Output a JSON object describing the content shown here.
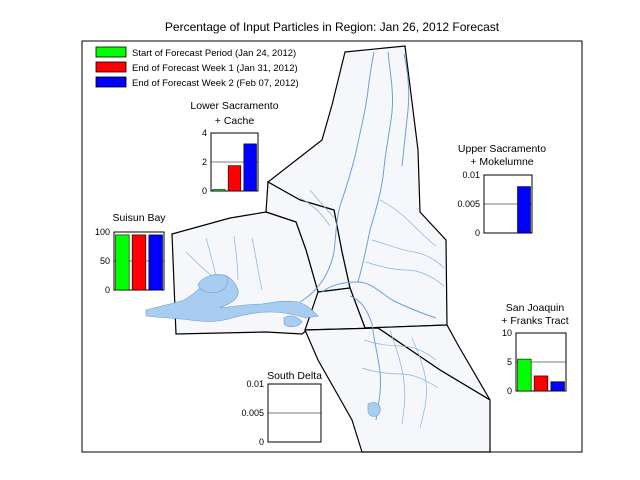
{
  "title": "Percentage of Input Particles in Region: Jan 26, 2012 Forecast",
  "colors": {
    "green": "#00ff00",
    "red": "#ff0000",
    "blue": "#0000ff",
    "water": "#a9cdf0"
  },
  "legend": [
    {
      "label": "Start of Forecast Period (Jan 24, 2012)",
      "color": "#00ff00"
    },
    {
      "label": "End of Forecast Week 1 (Jan 31, 2012)",
      "color": "#ff0000"
    },
    {
      "label": "End of Forecast Week 2 (Feb 07, 2012)",
      "color": "#0000ff"
    }
  ],
  "chart_data": [
    {
      "type": "bar",
      "title": [
        "Lower Sacramento",
        "+ Cache"
      ],
      "series": [
        "Start of Forecast Period (Jan 24, 2012)",
        "End of Forecast Week 1 (Jan 31, 2012)",
        "End of Forecast Week 2 (Feb 07, 2012)"
      ],
      "values": [
        0.1,
        1.75,
        3.25
      ],
      "ylim": [
        0,
        4
      ],
      "yticks": [
        0,
        2,
        4
      ],
      "ytick_labels": [
        "0",
        "2",
        "4"
      ],
      "grid_lines": [
        2
      ]
    },
    {
      "type": "bar",
      "title": [
        "Upper Sacramento",
        "+ Mokelumne"
      ],
      "series": [
        "Start of Forecast Period (Jan 24, 2012)",
        "End of Forecast Week 1 (Jan 31, 2012)",
        "End of Forecast Week 2 (Feb 07, 2012)"
      ],
      "values": [
        0,
        0,
        0.008
      ],
      "ylim": [
        0,
        0.01
      ],
      "yticks": [
        0,
        0.005,
        0.01
      ],
      "ytick_labels": [
        "0",
        "0.005",
        "0.01"
      ],
      "grid_lines": [
        0.005
      ]
    },
    {
      "type": "bar",
      "title": [
        "Suisun Bay"
      ],
      "series": [
        "Start of Forecast Period (Jan 24, 2012)",
        "End of Forecast Week 1 (Jan 31, 2012)",
        "End of Forecast Week 2 (Feb 07, 2012)"
      ],
      "values": [
        95,
        95,
        95
      ],
      "ylim": [
        0,
        100
      ],
      "yticks": [
        0,
        50,
        100
      ],
      "ytick_labels": [
        "0",
        "50",
        "100"
      ],
      "grid_lines": [
        50
      ]
    },
    {
      "type": "bar",
      "title": [
        "San Joaquin",
        "+ Franks Tract"
      ],
      "series": [
        "Start of Forecast Period (Jan 24, 2012)",
        "End of Forecast Week 1 (Jan 31, 2012)",
        "End of Forecast Week 2 (Feb 07, 2012)"
      ],
      "values": [
        5.5,
        2.6,
        1.6
      ],
      "ylim": [
        0,
        10
      ],
      "yticks": [
        0,
        5,
        10
      ],
      "ytick_labels": [
        "0",
        "5",
        "10"
      ],
      "grid_lines": [
        5
      ]
    },
    {
      "type": "bar",
      "title": [
        "South Delta"
      ],
      "series": [
        "Start of Forecast Period (Jan 24, 2012)",
        "End of Forecast Week 1 (Jan 31, 2012)",
        "End of Forecast Week 2 (Feb 07, 2012)"
      ],
      "values": [
        0,
        0,
        0
      ],
      "ylim": [
        0,
        0.01
      ],
      "yticks": [
        0,
        0.005,
        0.01
      ],
      "ytick_labels": [
        "0",
        "0.005",
        "0.01"
      ],
      "grid_lines": [
        0.005
      ]
    }
  ]
}
